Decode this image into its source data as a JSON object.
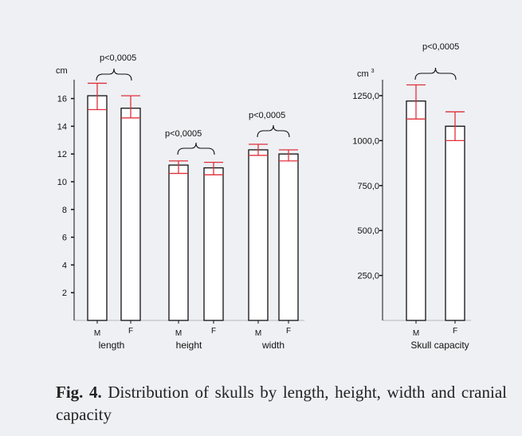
{
  "figure": {
    "caption_label": "Fig. 4.",
    "caption_text": "Distribution of skulls by length, height, width and cranial capacity"
  },
  "chart_data": [
    {
      "type": "bar",
      "unit_label": "cm",
      "ylim": [
        0,
        18
      ],
      "y_ticks": [
        2,
        4,
        6,
        8,
        10,
        12,
        14,
        16
      ],
      "y_tick_labels": [
        "2",
        "4",
        "6",
        "8",
        "10",
        "12",
        "14",
        "16"
      ],
      "groups": [
        {
          "name": "length",
          "pvalue": "p<0,0005",
          "bars": [
            {
              "label": "M",
              "value": 16.2,
              "err_low": 15.2,
              "err_high": 17.1
            },
            {
              "label": "F",
              "value": 15.3,
              "err_low": 14.6,
              "err_high": 16.2
            }
          ]
        },
        {
          "name": "height",
          "pvalue": "p<0,0005",
          "bars": [
            {
              "label": "M",
              "value": 11.2,
              "err_low": 10.6,
              "err_high": 11.5
            },
            {
              "label": "F",
              "value": 11.0,
              "err_low": 10.5,
              "err_high": 11.4
            }
          ]
        },
        {
          "name": "width",
          "pvalue": "p<0,0005",
          "bars": [
            {
              "label": "M",
              "value": 12.3,
              "err_low": 11.9,
              "err_high": 12.7
            },
            {
              "label": "F",
              "value": 12.0,
              "err_low": 11.5,
              "err_high": 12.3
            }
          ]
        }
      ],
      "error_bar_color": "#e0303a"
    },
    {
      "type": "bar",
      "unit_label": "cm",
      "unit_superscript": "3",
      "ylim": [
        0,
        1400
      ],
      "y_ticks": [
        250,
        500,
        750,
        1000,
        1250
      ],
      "y_tick_labels": [
        "250,0",
        "500,0",
        "750,0",
        "1000,0",
        "1250,0"
      ],
      "groups": [
        {
          "name": "Skull capacity",
          "pvalue": "p<0,0005",
          "bars": [
            {
              "label": "M",
              "value": 1220,
              "err_low": 1120,
              "err_high": 1310
            },
            {
              "label": "F",
              "value": 1080,
              "err_low": 1000,
              "err_high": 1160
            }
          ]
        }
      ],
      "error_bar_color": "#e0303a"
    }
  ]
}
